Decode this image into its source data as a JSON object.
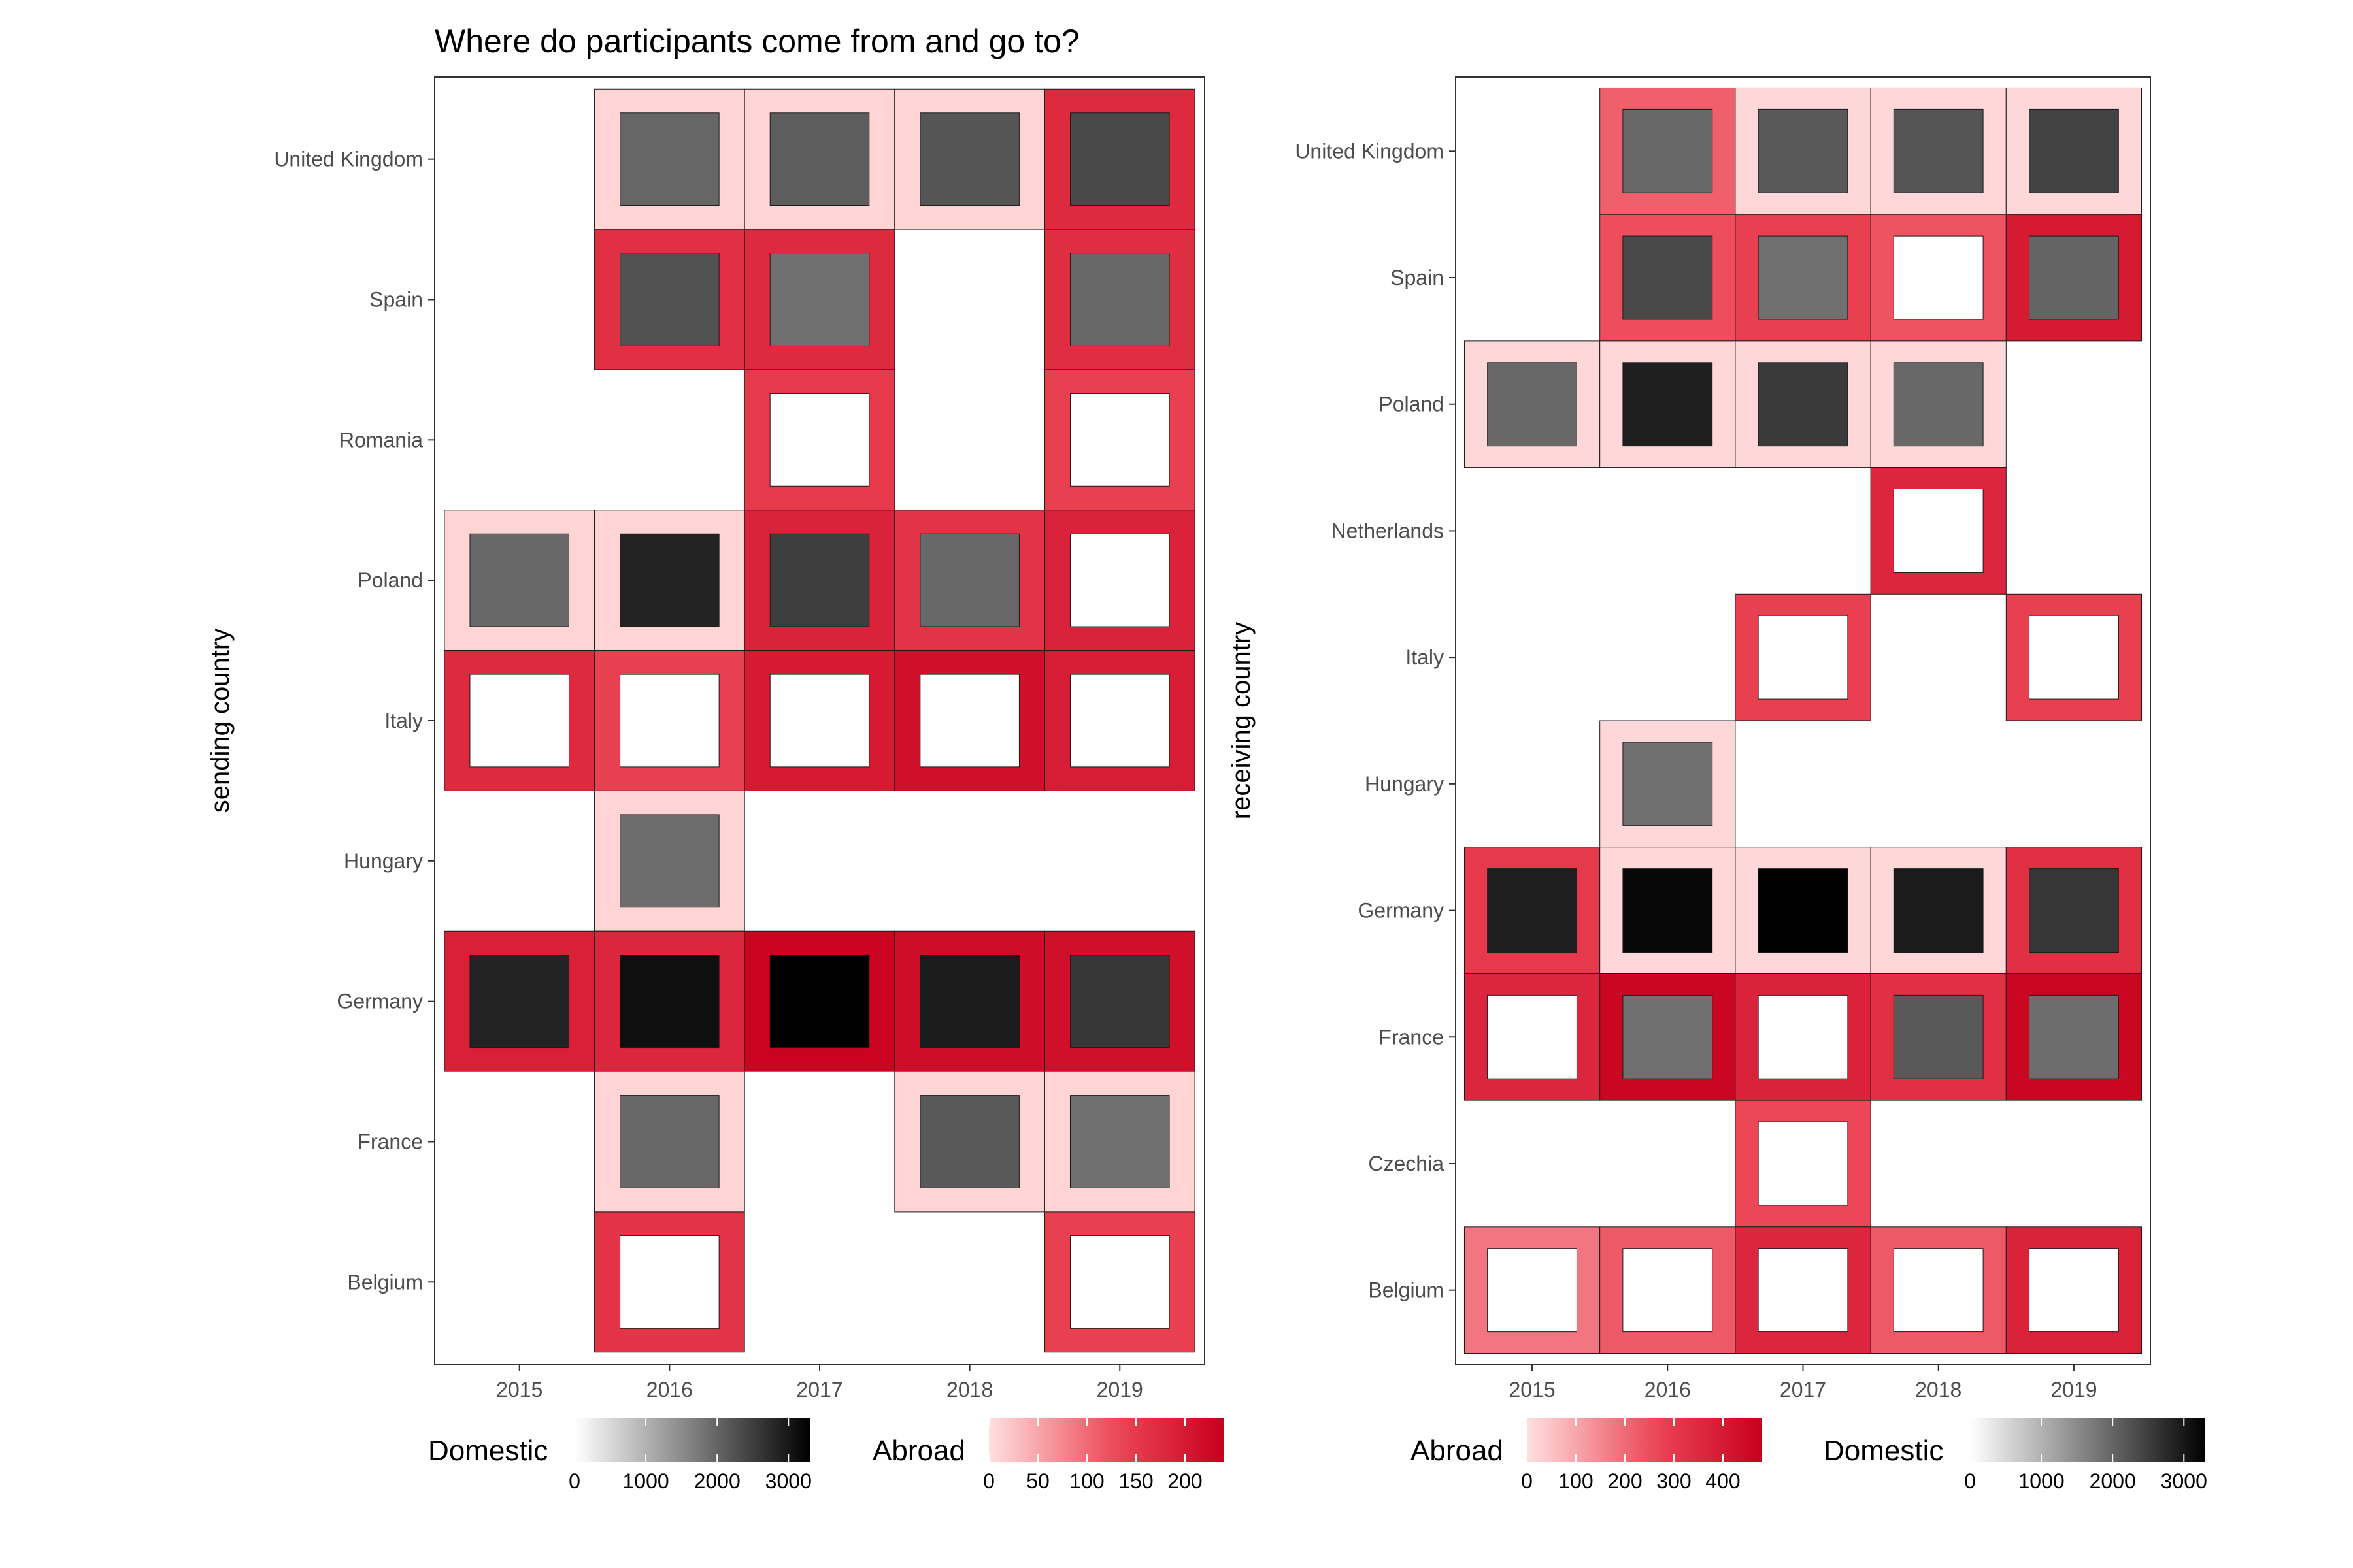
{
  "title": "Where do participants come from and go to?",
  "colors": {
    "abroad_low": "#ffe0e0",
    "abroad_mid": "#ec4555",
    "abroad_high": "#c8001e",
    "domestic_low": "#ffffff",
    "domestic_high": "#000000",
    "panel_border": "#333333",
    "tile_border": "#1a1a1a"
  },
  "chart_data": [
    {
      "type": "heatmap",
      "xlabel": "",
      "ylabel": "sending country",
      "x": [
        "2015",
        "2016",
        "2017",
        "2018",
        "2019"
      ],
      "y": [
        "United Kingdom",
        "Spain",
        "Romania",
        "Poland",
        "Italy",
        "Hungary",
        "Germany",
        "France",
        "Belgium"
      ],
      "grid": false,
      "legends": [
        {
          "title": "Domestic",
          "variable": "domestic",
          "min": 0,
          "max": 3300,
          "ticks": [
            0,
            1000,
            2000,
            3000
          ],
          "tick_labels": [
            "0",
            "1000",
            "2000",
            "3000"
          ]
        },
        {
          "title": "Abroad",
          "variable": "abroad",
          "min": 0,
          "max": 240,
          "ticks": [
            0,
            50,
            100,
            150,
            200
          ],
          "tick_labels": [
            "0",
            "50",
            "100",
            "150",
            "200"
          ]
        }
      ],
      "legend_position": "bottom",
      "cells": [
        {
          "country": "United Kingdom",
          "year": "2016",
          "abroad": 10,
          "domestic": 1980
        },
        {
          "country": "United Kingdom",
          "year": "2017",
          "abroad": 10,
          "domestic": 2100
        },
        {
          "country": "United Kingdom",
          "year": "2018",
          "abroad": 10,
          "domestic": 2200
        },
        {
          "country": "United Kingdom",
          "year": "2019",
          "abroad": 175,
          "domestic": 2350
        },
        {
          "country": "Spain",
          "year": "2016",
          "abroad": 165,
          "domestic": 2250
        },
        {
          "country": "Spain",
          "year": "2017",
          "abroad": 175,
          "domestic": 1850
        },
        {
          "country": "Spain",
          "year": "2019",
          "abroad": 170,
          "domestic": 1950
        },
        {
          "country": "Romania",
          "year": "2017",
          "abroad": 150,
          "domestic": 0
        },
        {
          "country": "Romania",
          "year": "2019",
          "abroad": 140,
          "domestic": 0
        },
        {
          "country": "Poland",
          "year": "2015",
          "abroad": 10,
          "domestic": 1950
        },
        {
          "country": "Poland",
          "year": "2016",
          "abroad": 10,
          "domestic": 2850
        },
        {
          "country": "Poland",
          "year": "2017",
          "abroad": 185,
          "domestic": 2500
        },
        {
          "country": "Poland",
          "year": "2018",
          "abroad": 160,
          "domestic": 1950
        },
        {
          "country": "Poland",
          "year": "2019",
          "abroad": 185,
          "domestic": 0
        },
        {
          "country": "Italy",
          "year": "2015",
          "abroad": 175,
          "domestic": 0
        },
        {
          "country": "Italy",
          "year": "2016",
          "abroad": 140,
          "domestic": 0
        },
        {
          "country": "Italy",
          "year": "2017",
          "abroad": 200,
          "domestic": 0
        },
        {
          "country": "Italy",
          "year": "2018",
          "abroad": 215,
          "domestic": 0
        },
        {
          "country": "Italy",
          "year": "2019",
          "abroad": 195,
          "domestic": 0
        },
        {
          "country": "Hungary",
          "year": "2016",
          "abroad": 10,
          "domestic": 1900
        },
        {
          "country": "Germany",
          "year": "2015",
          "abroad": 190,
          "domestic": 2850
        },
        {
          "country": "Germany",
          "year": "2016",
          "abroad": 180,
          "domestic": 3100
        },
        {
          "country": "Germany",
          "year": "2017",
          "abroad": 235,
          "domestic": 3300
        },
        {
          "country": "Germany",
          "year": "2018",
          "abroad": 220,
          "domestic": 2950
        },
        {
          "country": "Germany",
          "year": "2019",
          "abroad": 215,
          "domestic": 2600
        },
        {
          "country": "France",
          "year": "2016",
          "abroad": 10,
          "domestic": 1950
        },
        {
          "country": "France",
          "year": "2018",
          "abroad": 10,
          "domestic": 2150
        },
        {
          "country": "France",
          "year": "2019",
          "abroad": 10,
          "domestic": 1850
        },
        {
          "country": "Belgium",
          "year": "2016",
          "abroad": 160,
          "domestic": 0
        },
        {
          "country": "Belgium",
          "year": "2019",
          "abroad": 140,
          "domestic": 0
        }
      ]
    },
    {
      "type": "heatmap",
      "xlabel": "",
      "ylabel": "receiving country",
      "x": [
        "2015",
        "2016",
        "2017",
        "2018",
        "2019"
      ],
      "y": [
        "United Kingdom",
        "Spain",
        "Poland",
        "Netherlands",
        "Italy",
        "Hungary",
        "Germany",
        "France",
        "Czechia",
        "Belgium"
      ],
      "grid": false,
      "legends": [
        {
          "title": "Abroad",
          "variable": "abroad",
          "min": 0,
          "max": 480,
          "ticks": [
            0,
            100,
            200,
            300,
            400
          ],
          "tick_labels": [
            "0",
            "100",
            "200",
            "300",
            "400"
          ]
        },
        {
          "title": "Domestic",
          "variable": "domestic",
          "min": 0,
          "max": 3300,
          "ticks": [
            0,
            1000,
            2000,
            3000
          ],
          "tick_labels": [
            "0",
            "1000",
            "2000",
            "3000"
          ]
        }
      ],
      "legend_position": "bottom",
      "cells": [
        {
          "country": "United Kingdom",
          "year": "2016",
          "abroad": 220,
          "domestic": 1950
        },
        {
          "country": "United Kingdom",
          "year": "2017",
          "abroad": 15,
          "domestic": 2150
        },
        {
          "country": "United Kingdom",
          "year": "2018",
          "abroad": 15,
          "domestic": 2200
        },
        {
          "country": "United Kingdom",
          "year": "2019",
          "abroad": 15,
          "domestic": 2450
        },
        {
          "country": "Spain",
          "year": "2016",
          "abroad": 250,
          "domestic": 2350
        },
        {
          "country": "Spain",
          "year": "2017",
          "abroad": 280,
          "domestic": 1850
        },
        {
          "country": "Spain",
          "year": "2018",
          "abroad": 240,
          "domestic": 0
        },
        {
          "country": "Spain",
          "year": "2019",
          "abroad": 400,
          "domestic": 2000
        },
        {
          "country": "Poland",
          "year": "2015",
          "abroad": 15,
          "domestic": 1950
        },
        {
          "country": "Poland",
          "year": "2016",
          "abroad": 15,
          "domestic": 2900
        },
        {
          "country": "Poland",
          "year": "2017",
          "abroad": 15,
          "domestic": 2550
        },
        {
          "country": "Poland",
          "year": "2018",
          "abroad": 15,
          "domestic": 1950
        },
        {
          "country": "Netherlands",
          "year": "2018",
          "abroad": 360,
          "domestic": 0
        },
        {
          "country": "Italy",
          "year": "2017",
          "abroad": 280,
          "domestic": 0
        },
        {
          "country": "Italy",
          "year": "2019",
          "abroad": 280,
          "domestic": 0
        },
        {
          "country": "Hungary",
          "year": "2016",
          "abroad": 15,
          "domestic": 1850
        },
        {
          "country": "Germany",
          "year": "2015",
          "abroad": 300,
          "domestic": 2900
        },
        {
          "country": "Germany",
          "year": "2016",
          "abroad": 15,
          "domestic": 3200
        },
        {
          "country": "Germany",
          "year": "2017",
          "abroad": 15,
          "domestic": 3300
        },
        {
          "country": "Germany",
          "year": "2018",
          "abroad": 15,
          "domestic": 2950
        },
        {
          "country": "Germany",
          "year": "2019",
          "abroad": 330,
          "domestic": 2600
        },
        {
          "country": "France",
          "year": "2015",
          "abroad": 360,
          "domestic": 0
        },
        {
          "country": "France",
          "year": "2016",
          "abroad": 460,
          "domestic": 1850
        },
        {
          "country": "France",
          "year": "2017",
          "abroad": 370,
          "domestic": 0
        },
        {
          "country": "France",
          "year": "2018",
          "abroad": 330,
          "domestic": 2150
        },
        {
          "country": "France",
          "year": "2019",
          "abroad": 460,
          "domestic": 1900
        },
        {
          "country": "Czechia",
          "year": "2017",
          "abroad": 260,
          "domestic": 0
        },
        {
          "country": "Belgium",
          "year": "2015",
          "abroad": 180,
          "domestic": 0
        },
        {
          "country": "Belgium",
          "year": "2016",
          "abroad": 230,
          "domestic": 0
        },
        {
          "country": "Belgium",
          "year": "2017",
          "abroad": 360,
          "domestic": 0
        },
        {
          "country": "Belgium",
          "year": "2018",
          "abroad": 230,
          "domestic": 0
        },
        {
          "country": "Belgium",
          "year": "2019",
          "abroad": 370,
          "domestic": 0
        }
      ]
    }
  ]
}
